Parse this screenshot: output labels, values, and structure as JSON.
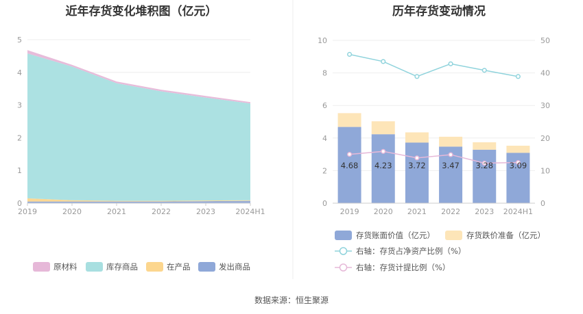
{
  "source_text": "数据来源：恒生聚源",
  "chart_data": [
    {
      "type": "area",
      "title": "近年存货变化堆积图（亿元）",
      "categories": [
        "2019",
        "2020",
        "2021",
        "2022",
        "2023",
        "2024H1"
      ],
      "ylim": [
        0,
        5
      ],
      "yticks": [
        "0",
        "1",
        "2",
        "3",
        "4",
        "5"
      ],
      "stacked": true,
      "grid": true,
      "legend_position": "bottom",
      "series": [
        {
          "name": "发出商品",
          "color": "#8fa8d8",
          "values": [
            0.05,
            0.05,
            0.05,
            0.05,
            0.06,
            0.07
          ]
        },
        {
          "name": "在产品",
          "color": "#fcd68e",
          "values": [
            0.1,
            0.04,
            0.02,
            0.02,
            0.02,
            0.02
          ]
        },
        {
          "name": "库存商品",
          "color": "#a8dfe0",
          "values": [
            4.43,
            4.09,
            3.6,
            3.35,
            3.15,
            2.96
          ]
        },
        {
          "name": "原材料",
          "color": "#e6b8d8",
          "values": [
            0.1,
            0.05,
            0.05,
            0.05,
            0.05,
            0.04
          ]
        }
      ],
      "legend_order": [
        "原材料",
        "库存商品",
        "在产品",
        "发出商品"
      ]
    },
    {
      "type": "bar",
      "title": "历年存货变动情况",
      "categories": [
        "2019",
        "2020",
        "2021",
        "2022",
        "2023",
        "2024H1"
      ],
      "ylim": [
        0,
        10
      ],
      "yticks": [
        "0",
        "2",
        "4",
        "6",
        "8",
        "10"
      ],
      "y2lim": [
        0,
        50
      ],
      "y2ticks": [
        "0",
        "10",
        "20",
        "30",
        "40",
        "50"
      ],
      "grid": true,
      "legend_position": "bottom",
      "series": [
        {
          "name": "存货账面价值（亿元）",
          "kind": "bar",
          "color": "#8fa8d8",
          "values": [
            4.68,
            4.23,
            3.72,
            3.47,
            3.28,
            3.09
          ],
          "labels": [
            "4.68",
            "4.23",
            "3.72",
            "3.47",
            "3.28",
            "3.09"
          ]
        },
        {
          "name": "存货跌价准备（亿元）",
          "kind": "bar-stack",
          "color": "#fde5b8",
          "values": [
            0.85,
            0.8,
            0.63,
            0.61,
            0.46,
            0.44
          ]
        },
        {
          "name": "右轴：存货占净资产比例（%）",
          "kind": "line",
          "axis": "right",
          "color": "#8fd3dc",
          "values": [
            45.7,
            43.5,
            38.9,
            42.8,
            40.8,
            38.9
          ]
        },
        {
          "name": "右轴：存货计提比例（%）",
          "kind": "line",
          "axis": "right",
          "color": "#e6b8d8",
          "values": [
            15.0,
            15.9,
            13.9,
            14.9,
            12.3,
            12.5
          ]
        }
      ]
    }
  ]
}
